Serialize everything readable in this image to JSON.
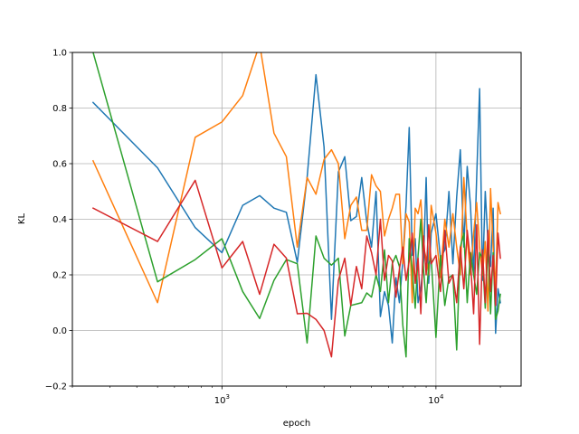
{
  "chart_data": {
    "type": "line",
    "xlabel": "epoch",
    "ylabel": "KL",
    "xscale": "log",
    "xlim": [
      200,
      25000
    ],
    "ylim": [
      -0.2,
      1.0
    ],
    "grid": true,
    "x_ticks": [
      {
        "value": 1000,
        "base": "10",
        "exp": "3"
      },
      {
        "value": 10000,
        "base": "10",
        "exp": "4"
      }
    ],
    "y_ticks": [
      {
        "value": -0.2,
        "label": "−0.2"
      },
      {
        "value": 0.0,
        "label": "0.0"
      },
      {
        "value": 0.2,
        "label": "0.2"
      },
      {
        "value": 0.4,
        "label": "0.4"
      },
      {
        "value": 0.6,
        "label": "0.6"
      },
      {
        "value": 0.8,
        "label": "0.8"
      },
      {
        "value": 1.0,
        "label": "1.0"
      }
    ],
    "series": [
      {
        "color": "#1f77b4",
        "points": [
          [
            250,
            0.82
          ],
          [
            500,
            0.585
          ],
          [
            750,
            0.37
          ],
          [
            1000,
            0.28
          ],
          [
            1250,
            0.45
          ],
          [
            1500,
            0.485
          ],
          [
            1750,
            0.44
          ],
          [
            2000,
            0.425
          ],
          [
            2250,
            0.245
          ],
          [
            2500,
            0.55
          ],
          [
            2750,
            0.92
          ],
          [
            3000,
            0.66
          ],
          [
            3250,
            0.04
          ],
          [
            3500,
            0.57
          ],
          [
            3750,
            0.625
          ],
          [
            4000,
            0.395
          ],
          [
            4250,
            0.41
          ],
          [
            4500,
            0.55
          ],
          [
            4750,
            0.39
          ],
          [
            5000,
            0.3
          ],
          [
            5250,
            0.5
          ],
          [
            5500,
            0.05
          ],
          [
            5750,
            0.14
          ],
          [
            6000,
            0.09
          ],
          [
            6250,
            -0.045
          ],
          [
            6500,
            0.19
          ],
          [
            6750,
            0.1
          ],
          [
            7000,
            0.25
          ],
          [
            7250,
            0.45
          ],
          [
            7500,
            0.73
          ],
          [
            7750,
            0.27
          ],
          [
            8000,
            0.33
          ],
          [
            8250,
            0.1
          ],
          [
            8500,
            0.15
          ],
          [
            8750,
            0.25
          ],
          [
            9000,
            0.55
          ],
          [
            9250,
            0.17
          ],
          [
            9500,
            0.35
          ],
          [
            10000,
            0.42
          ],
          [
            10500,
            0.26
          ],
          [
            11000,
            0.29
          ],
          [
            11500,
            0.5
          ],
          [
            12000,
            0.24
          ],
          [
            12500,
            0.48
          ],
          [
            13000,
            0.65
          ],
          [
            13500,
            0.3
          ],
          [
            14000,
            0.59
          ],
          [
            14500,
            0.45
          ],
          [
            15000,
            0.2
          ],
          [
            15500,
            0.55
          ],
          [
            16000,
            0.87
          ],
          [
            16500,
            0.18
          ],
          [
            17000,
            0.5
          ],
          [
            17500,
            0.32
          ],
          [
            18000,
            0.23
          ],
          [
            18500,
            0.44
          ],
          [
            19000,
            -0.01
          ],
          [
            19500,
            0.15
          ],
          [
            20000,
            0.1
          ]
        ]
      },
      {
        "color": "#ff7f0e",
        "points": [
          [
            250,
            0.61
          ],
          [
            500,
            0.1
          ],
          [
            750,
            0.695
          ],
          [
            1000,
            0.75
          ],
          [
            1250,
            0.845
          ],
          [
            1500,
            1.03
          ],
          [
            1750,
            0.71
          ],
          [
            2000,
            0.625
          ],
          [
            2250,
            0.3
          ],
          [
            2500,
            0.55
          ],
          [
            2750,
            0.49
          ],
          [
            3000,
            0.615
          ],
          [
            3250,
            0.65
          ],
          [
            3500,
            0.6
          ],
          [
            3750,
            0.33
          ],
          [
            4000,
            0.45
          ],
          [
            4250,
            0.48
          ],
          [
            4500,
            0.36
          ],
          [
            4750,
            0.36
          ],
          [
            5000,
            0.56
          ],
          [
            5250,
            0.52
          ],
          [
            5500,
            0.5
          ],
          [
            5750,
            0.34
          ],
          [
            6000,
            0.4
          ],
          [
            6250,
            0.44
          ],
          [
            6500,
            0.49
          ],
          [
            6750,
            0.49
          ],
          [
            7000,
            0.24
          ],
          [
            7250,
            0.42
          ],
          [
            7500,
            0.39
          ],
          [
            7750,
            0.1
          ],
          [
            8000,
            0.44
          ],
          [
            8250,
            0.42
          ],
          [
            8500,
            0.47
          ],
          [
            8750,
            0.3
          ],
          [
            9000,
            0.26
          ],
          [
            9250,
            0.2
          ],
          [
            9500,
            0.45
          ],
          [
            10000,
            0.35
          ],
          [
            10500,
            0.19
          ],
          [
            11000,
            0.4
          ],
          [
            11500,
            0.3
          ],
          [
            12000,
            0.42
          ],
          [
            12500,
            0.3
          ],
          [
            13000,
            0.2
          ],
          [
            13500,
            0.55
          ],
          [
            14000,
            0.33
          ],
          [
            14500,
            0.2
          ],
          [
            15000,
            0.35
          ],
          [
            15500,
            0.46
          ],
          [
            16000,
            0.3
          ],
          [
            16500,
            0.2
          ],
          [
            17000,
            0.32
          ],
          [
            17500,
            0.07
          ],
          [
            18000,
            0.51
          ],
          [
            18500,
            0.3
          ],
          [
            19000,
            0.15
          ],
          [
            19500,
            0.46
          ],
          [
            20000,
            0.42
          ]
        ]
      },
      {
        "color": "#2ca02c",
        "points": [
          [
            250,
            1.0
          ],
          [
            500,
            0.175
          ],
          [
            750,
            0.255
          ],
          [
            1000,
            0.33
          ],
          [
            1250,
            0.14
          ],
          [
            1500,
            0.043
          ],
          [
            1750,
            0.18
          ],
          [
            2000,
            0.255
          ],
          [
            2250,
            0.24
          ],
          [
            2500,
            -0.045
          ],
          [
            2750,
            0.34
          ],
          [
            3000,
            0.26
          ],
          [
            3250,
            0.235
          ],
          [
            3500,
            0.26
          ],
          [
            3750,
            -0.02
          ],
          [
            4000,
            0.09
          ],
          [
            4250,
            0.095
          ],
          [
            4500,
            0.1
          ],
          [
            4750,
            0.135
          ],
          [
            5000,
            0.12
          ],
          [
            5250,
            0.2
          ],
          [
            5500,
            0.14
          ],
          [
            5750,
            0.29
          ],
          [
            6000,
            0.1
          ],
          [
            6250,
            0.24
          ],
          [
            6500,
            0.27
          ],
          [
            6750,
            0.23
          ],
          [
            7000,
            0.02
          ],
          [
            7250,
            -0.095
          ],
          [
            7500,
            0.33
          ],
          [
            7750,
            0.22
          ],
          [
            8000,
            0.08
          ],
          [
            8250,
            0.27
          ],
          [
            8500,
            0.4
          ],
          [
            8750,
            0.22
          ],
          [
            9000,
            0.1
          ],
          [
            9250,
            0.24
          ],
          [
            9500,
            0.26
          ],
          [
            10000,
            -0.025
          ],
          [
            10500,
            0.27
          ],
          [
            11000,
            0.09
          ],
          [
            11500,
            0.19
          ],
          [
            12000,
            0.2
          ],
          [
            12500,
            -0.07
          ],
          [
            13000,
            0.3
          ],
          [
            13500,
            0.35
          ],
          [
            14000,
            0.1
          ],
          [
            14500,
            0.28
          ],
          [
            15000,
            0.2
          ],
          [
            15500,
            0.13
          ],
          [
            16000,
            0.28
          ],
          [
            16500,
            0.26
          ],
          [
            17000,
            0.08
          ],
          [
            17500,
            0.31
          ],
          [
            18000,
            0.06
          ],
          [
            18500,
            0.28
          ],
          [
            19000,
            0.04
          ],
          [
            19500,
            0.07
          ],
          [
            20000,
            0.13
          ]
        ]
      },
      {
        "color": "#d62728",
        "points": [
          [
            250,
            0.44
          ],
          [
            500,
            0.32
          ],
          [
            750,
            0.54
          ],
          [
            1000,
            0.225
          ],
          [
            1250,
            0.32
          ],
          [
            1500,
            0.13
          ],
          [
            1750,
            0.31
          ],
          [
            2000,
            0.26
          ],
          [
            2250,
            0.06
          ],
          [
            2500,
            0.062
          ],
          [
            2750,
            0.04
          ],
          [
            3000,
            0.0
          ],
          [
            3250,
            -0.095
          ],
          [
            3500,
            0.18
          ],
          [
            3750,
            0.26
          ],
          [
            4000,
            0.09
          ],
          [
            4250,
            0.23
          ],
          [
            4500,
            0.15
          ],
          [
            4750,
            0.34
          ],
          [
            5000,
            0.28
          ],
          [
            5250,
            0.2
          ],
          [
            5500,
            0.4
          ],
          [
            5750,
            0.18
          ],
          [
            6000,
            0.27
          ],
          [
            6250,
            0.25
          ],
          [
            6500,
            0.12
          ],
          [
            6750,
            0.22
          ],
          [
            7000,
            0.3
          ],
          [
            7250,
            0.18
          ],
          [
            7500,
            0.25
          ],
          [
            7750,
            0.35
          ],
          [
            8000,
            0.17
          ],
          [
            8250,
            0.26
          ],
          [
            8500,
            0.06
          ],
          [
            8750,
            0.34
          ],
          [
            9000,
            0.2
          ],
          [
            9250,
            0.38
          ],
          [
            9500,
            0.24
          ],
          [
            10000,
            0.27
          ],
          [
            10500,
            0.14
          ],
          [
            11000,
            0.36
          ],
          [
            11500,
            0.17
          ],
          [
            12000,
            0.2
          ],
          [
            12500,
            0.1
          ],
          [
            13000,
            0.3
          ],
          [
            13500,
            0.15
          ],
          [
            14000,
            0.36
          ],
          [
            14500,
            0.25
          ],
          [
            15000,
            0.06
          ],
          [
            15500,
            0.38
          ],
          [
            16000,
            -0.05
          ],
          [
            16500,
            0.29
          ],
          [
            17000,
            0.1
          ],
          [
            17500,
            0.36
          ],
          [
            18000,
            0.14
          ],
          [
            18500,
            0.27
          ],
          [
            19000,
            0.09
          ],
          [
            19500,
            0.35
          ],
          [
            20000,
            0.26
          ]
        ]
      }
    ]
  }
}
